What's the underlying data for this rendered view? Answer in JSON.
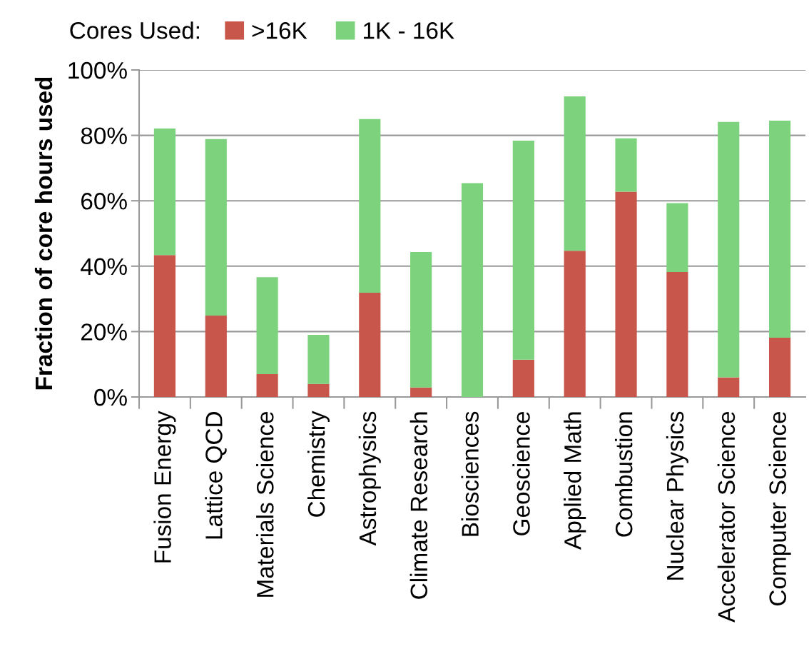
{
  "chart_data": {
    "type": "bar",
    "stacked": true,
    "ylabel": "Fraction of core hours used",
    "legend_title": "Cores Used:",
    "legend": "top",
    "categories": [
      "Fusion Energy",
      "Lattice QCD",
      "Materials Science",
      "Chemistry",
      "Astrophysics",
      "Climate Research",
      "Biosciences",
      "Geoscience",
      "Applied Math",
      "Combustion",
      "Nuclear Physics",
      "Accelerator Science",
      "Computer Science"
    ],
    "series": [
      {
        "name": ">16K",
        "color": "#c9564a",
        "values": [
          43.4,
          24.9,
          7.0,
          4.0,
          31.9,
          2.9,
          0,
          11.4,
          44.7,
          62.8,
          38.2,
          6.0,
          18.1
        ]
      },
      {
        "name": "1K - 16K",
        "color": "#7dd37d",
        "values": [
          38.7,
          54.0,
          29.6,
          15.0,
          53.1,
          41.4,
          65.4,
          67.0,
          47.2,
          16.3,
          21.1,
          78.1,
          66.4
        ]
      }
    ],
    "ylim": [
      0,
      100
    ],
    "yticks": [
      {
        "value": 0,
        "label": "0%"
      },
      {
        "value": 20,
        "label": "20%"
      },
      {
        "value": 40,
        "label": "40%"
      },
      {
        "value": 60,
        "label": "60%"
      },
      {
        "value": 80,
        "label": "80%"
      },
      {
        "value": 100,
        "label": "100%"
      }
    ],
    "grid": "y"
  }
}
